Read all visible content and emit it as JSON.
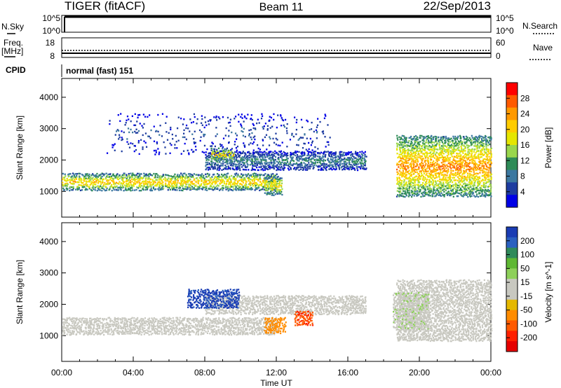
{
  "header": {
    "radar": "TIGER (fitACF)",
    "beam": "Beam 11",
    "date": "22/Sep/2013"
  },
  "top_strips": {
    "nsky_label": "N.Sky",
    "nsky_ticks": [
      "10^5",
      "10^0"
    ],
    "nsearch_label": "N.Search",
    "nsearch_ticks": [
      "10^5",
      "10^0"
    ],
    "freq_label_1": "Freq.",
    "freq_label_2": "[MHz]",
    "freq_ticks": [
      "18",
      "8"
    ],
    "nave_label": "Nave",
    "nave_ticks": [
      "60",
      "0"
    ],
    "cpid_label": "CPID",
    "cpid_value": "normal (fast) 151"
  },
  "chart_data": [
    {
      "type": "heatmap",
      "name": "power",
      "xlabel": "Time UT",
      "ylabel": "Slant Range [km]",
      "x_ticks": [
        "00:00",
        "04:00",
        "08:00",
        "12:00",
        "16:00",
        "20:00",
        "00:00"
      ],
      "xlim_hours": [
        0,
        24
      ],
      "ylim_km": [
        180,
        4600
      ],
      "y_ticks": [
        "1000",
        "2000",
        "3000",
        "4000"
      ],
      "colorbar_label": "Power [dB]",
      "colorbar_ticks": [
        "28",
        "24",
        "20",
        "16",
        "12",
        "8",
        "4"
      ],
      "colorbar_colors": [
        "#ff0000",
        "#ff5a00",
        "#ff9900",
        "#ffcc00",
        "#e5e600",
        "#99d64c",
        "#2e8b57",
        "#3c78a0",
        "#1e3ca0",
        "#0000e6"
      ],
      "grid": false,
      "features": [
        {
          "label": "main band",
          "start_h": 0,
          "end_h": 12,
          "range_km": [
            1050,
            1600
          ],
          "peak_db": 24
        },
        {
          "label": "secondary band",
          "start_h": 8,
          "end_h": 17,
          "range_km": [
            1700,
            2300
          ],
          "peak_db": 12
        },
        {
          "label": "morning patch",
          "start_h": 8.3,
          "end_h": 9.6,
          "range_km": [
            2000,
            2400
          ],
          "peak_db": 24
        },
        {
          "label": "noon patch",
          "start_h": 11.3,
          "end_h": 12.3,
          "range_km": [
            900,
            1500
          ],
          "peak_db": 22
        },
        {
          "label": "evening band",
          "start_h": 18.7,
          "end_h": 24,
          "range_km": [
            850,
            2800
          ],
          "peak_db": 26
        },
        {
          "label": "far range scatter",
          "start_h": 2.5,
          "end_h": 15,
          "range_km": [
            2200,
            3500
          ],
          "peak_db": 8
        }
      ]
    },
    {
      "type": "heatmap",
      "name": "velocity",
      "xlabel": "Time UT",
      "ylabel": "Slant Range [km]",
      "x_ticks": [
        "00:00",
        "04:00",
        "08:00",
        "12:00",
        "16:00",
        "20:00",
        "00:00"
      ],
      "xlim_hours": [
        0,
        24
      ],
      "ylim_km": [
        180,
        4600
      ],
      "y_ticks": [
        "1000",
        "2000",
        "3000",
        "4000"
      ],
      "colorbar_label": "Velocity [m s^-1]",
      "colorbar_ticks": [
        "200",
        "100",
        "50",
        "15",
        "-15",
        "-50",
        "-100",
        "-200"
      ],
      "colorbar_colors": [
        "#1a3cb4",
        "#2a60c0",
        "#2f8a5a",
        "#5fb833",
        "#8ed05a",
        "#c8c8c0",
        "#c8c8c0",
        "#e5b800",
        "#ff8c00",
        "#ff5a00",
        "#ff2000",
        "#e60000"
      ],
      "grid": false,
      "features": [
        {
          "label": "main band",
          "start_h": 0,
          "end_h": 12,
          "range_km": [
            1050,
            1600
          ],
          "velocity": 0
        },
        {
          "label": "secondary band",
          "start_h": 8,
          "end_h": 17,
          "range_km": [
            1700,
            2300
          ],
          "velocity": 0
        },
        {
          "label": "morning patch",
          "start_h": 7.0,
          "end_h": 9.9,
          "range_km": [
            1900,
            2500
          ],
          "velocity": 200
        },
        {
          "label": "noon patch",
          "start_h": 11.3,
          "end_h": 12.5,
          "range_km": [
            1100,
            1600
          ],
          "velocity": -100
        },
        {
          "label": "afternoon patch",
          "start_h": 13.0,
          "end_h": 14.0,
          "range_km": [
            1350,
            1800
          ],
          "velocity": -150
        },
        {
          "label": "evening band",
          "start_h": 18.7,
          "end_h": 24,
          "range_km": [
            850,
            2800
          ],
          "velocity": 0
        },
        {
          "label": "evening arm",
          "start_h": 18.5,
          "end_h": 20.5,
          "range_km": [
            1200,
            2400
          ],
          "velocity": 30
        }
      ]
    }
  ]
}
